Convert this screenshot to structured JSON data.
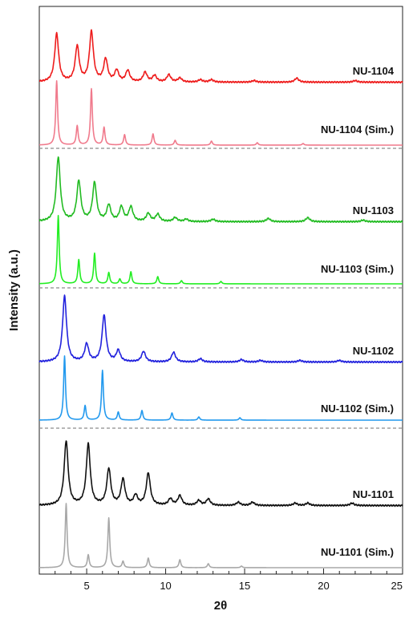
{
  "chart_data": {
    "type": "line",
    "title": "",
    "xlabel": "2θ",
    "ylabel": "Intensity (a.u.)",
    "xlim": [
      2,
      25
    ],
    "x_ticks": [
      5,
      10,
      15,
      20,
      25
    ],
    "grid": false,
    "legend": "none (inline labels at right)",
    "series": [
      {
        "name": "NU-1104",
        "color": "#ee1c1c",
        "baseline": 0.5,
        "peaks": [
          [
            3.1,
            60
          ],
          [
            4.4,
            44
          ],
          [
            5.3,
            62
          ],
          [
            6.2,
            28
          ],
          [
            6.9,
            14
          ],
          [
            7.6,
            14
          ],
          [
            8.7,
            12
          ],
          [
            9.3,
            8
          ],
          [
            10.2,
            9
          ],
          [
            10.9,
            5
          ],
          [
            12.2,
            3
          ],
          [
            12.9,
            3
          ],
          [
            15.6,
            2
          ],
          [
            18.3,
            5
          ],
          [
            22.0,
            2
          ]
        ]
      },
      {
        "name": "NU-1104 (Sim.)",
        "color": "#f07a8c",
        "baseline": 0,
        "peaks": [
          [
            3.1,
            80
          ],
          [
            4.4,
            24
          ],
          [
            5.3,
            70
          ],
          [
            6.1,
            22
          ],
          [
            7.4,
            13
          ],
          [
            9.2,
            14
          ],
          [
            10.6,
            6
          ],
          [
            12.9,
            5
          ],
          [
            15.8,
            3
          ],
          [
            18.7,
            2
          ]
        ]
      },
      {
        "name": "NU-1103",
        "color": "#22bb22",
        "baseline": 0.5,
        "peaks": [
          [
            3.2,
            80
          ],
          [
            4.5,
            50
          ],
          [
            5.5,
            48
          ],
          [
            6.4,
            20
          ],
          [
            7.2,
            18
          ],
          [
            7.8,
            18
          ],
          [
            8.9,
            10
          ],
          [
            9.5,
            9
          ],
          [
            10.6,
            5
          ],
          [
            11.3,
            3
          ],
          [
            13.0,
            3
          ],
          [
            16.5,
            4
          ],
          [
            19.0,
            5
          ],
          [
            22.5,
            2
          ]
        ]
      },
      {
        "name": "NU-1103 (Sim.)",
        "color": "#22ee22",
        "baseline": 0,
        "peaks": [
          [
            3.2,
            85
          ],
          [
            4.5,
            30
          ],
          [
            5.5,
            38
          ],
          [
            6.4,
            14
          ],
          [
            7.1,
            6
          ],
          [
            7.8,
            15
          ],
          [
            9.5,
            9
          ],
          [
            11.0,
            4
          ],
          [
            13.5,
            3
          ]
        ]
      },
      {
        "name": "NU-1102",
        "color": "#2222dd",
        "baseline": 0.5,
        "peaks": [
          [
            3.6,
            82
          ],
          [
            5.0,
            22
          ],
          [
            6.1,
            58
          ],
          [
            7.0,
            14
          ],
          [
            8.6,
            13
          ],
          [
            10.5,
            12
          ],
          [
            12.2,
            4
          ],
          [
            14.8,
            3
          ],
          [
            16.0,
            2
          ],
          [
            18.5,
            2
          ],
          [
            21.0,
            2
          ]
        ]
      },
      {
        "name": "NU-1102 (Sim.)",
        "color": "#2299ee",
        "baseline": 0,
        "peaks": [
          [
            3.6,
            80
          ],
          [
            4.9,
            18
          ],
          [
            6.0,
            62
          ],
          [
            7.0,
            10
          ],
          [
            8.5,
            12
          ],
          [
            10.4,
            9
          ],
          [
            12.1,
            4
          ],
          [
            14.7,
            3
          ]
        ]
      },
      {
        "name": "NU-1101",
        "color": "#111111",
        "baseline": 0.5,
        "peaks": [
          [
            3.7,
            80
          ],
          [
            5.1,
            76
          ],
          [
            6.4,
            45
          ],
          [
            7.3,
            32
          ],
          [
            8.1,
            12
          ],
          [
            8.9,
            40
          ],
          [
            10.3,
            8
          ],
          [
            10.9,
            12
          ],
          [
            12.1,
            6
          ],
          [
            12.7,
            8
          ],
          [
            14.6,
            4
          ],
          [
            15.5,
            4
          ],
          [
            18.2,
            3
          ],
          [
            19.0,
            3
          ],
          [
            21.8,
            3
          ]
        ]
      },
      {
        "name": "NU-1101 (Sim.)",
        "color": "#a8a8a8",
        "baseline": 0,
        "peaks": [
          [
            3.7,
            80
          ],
          [
            5.1,
            16
          ],
          [
            6.4,
            62
          ],
          [
            7.3,
            8
          ],
          [
            8.9,
            12
          ],
          [
            10.9,
            10
          ],
          [
            12.7,
            5
          ],
          [
            14.8,
            2
          ]
        ]
      }
    ]
  }
}
